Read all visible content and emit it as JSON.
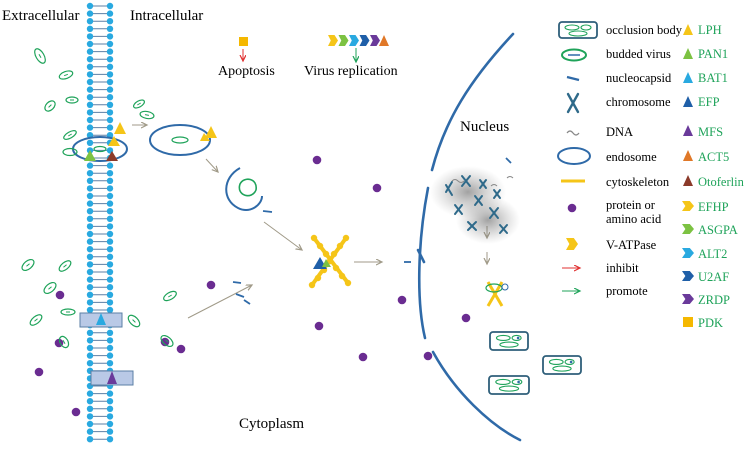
{
  "labels": {
    "extracellular": "Extracellular",
    "intracellular": "Intracellular",
    "apoptosis": "Apoptosis",
    "virus_replication": "Virus replication",
    "nucleus": "Nucleus",
    "cytoplasm": "Cytoplasm"
  },
  "legend_left": [
    {
      "icon": "occlusion-body-icon",
      "text": "occlusion body"
    },
    {
      "icon": "budded-virus-icon",
      "text": "budded virus"
    },
    {
      "icon": "nucleocapsid-icon",
      "text": "nucleocapsid"
    },
    {
      "icon": "chromosome-icon",
      "text": "chromosome"
    },
    {
      "icon": "dna-icon",
      "text": "DNA"
    },
    {
      "icon": "endosome-icon",
      "text": "endosome"
    },
    {
      "icon": "cytoskeleton-icon",
      "text": "cytoskeleton"
    },
    {
      "icon": "protein-icon",
      "text": "protein or\namino acid"
    },
    {
      "icon": "v-atpase-icon",
      "text": "V-ATPase"
    },
    {
      "icon": "inhibit-arrow-icon",
      "text": "inhibit"
    },
    {
      "icon": "promote-arrow-icon",
      "text": "promote"
    }
  ],
  "legend_right": [
    {
      "icon": "triangle-icon",
      "color": "#f5c518",
      "text": "LPH"
    },
    {
      "icon": "triangle-icon",
      "color": "#7cc242",
      "text": "PAN1"
    },
    {
      "icon": "triangle-icon",
      "color": "#29a9e0",
      "text": "BAT1"
    },
    {
      "icon": "triangle-icon",
      "color": "#1f5fa8",
      "text": "EFP"
    },
    {
      "icon": "triangle-icon",
      "color": "#6a3a9a",
      "text": "MFS"
    },
    {
      "icon": "triangle-icon",
      "color": "#e07828",
      "text": "ACT5"
    },
    {
      "icon": "triangle-icon",
      "color": "#8b3a2a",
      "text": "Otoferlin"
    },
    {
      "icon": "chevron-icon",
      "color": "#f5c518",
      "text": "EFHP"
    },
    {
      "icon": "chevron-icon",
      "color": "#7cc242",
      "text": "ASGPA"
    },
    {
      "icon": "chevron-icon",
      "color": "#29a9e0",
      "text": "ALT2"
    },
    {
      "icon": "chevron-icon",
      "color": "#1f5fa8",
      "text": "U2AF"
    },
    {
      "icon": "chevron-icon",
      "color": "#6a3a9a",
      "text": "ZRDP"
    },
    {
      "icon": "square-icon",
      "color": "#f5b800",
      "text": "PDK"
    }
  ],
  "colors": {
    "membrane_head": "#29a9e0",
    "membrane_tail": "#5b7fa5",
    "green": "#1fa35a",
    "blue": "#2f6aa8",
    "purple": "#6a2c91",
    "yellow": "#f5c518",
    "red": "#e03030",
    "arrow_gray": "#a09a88"
  }
}
